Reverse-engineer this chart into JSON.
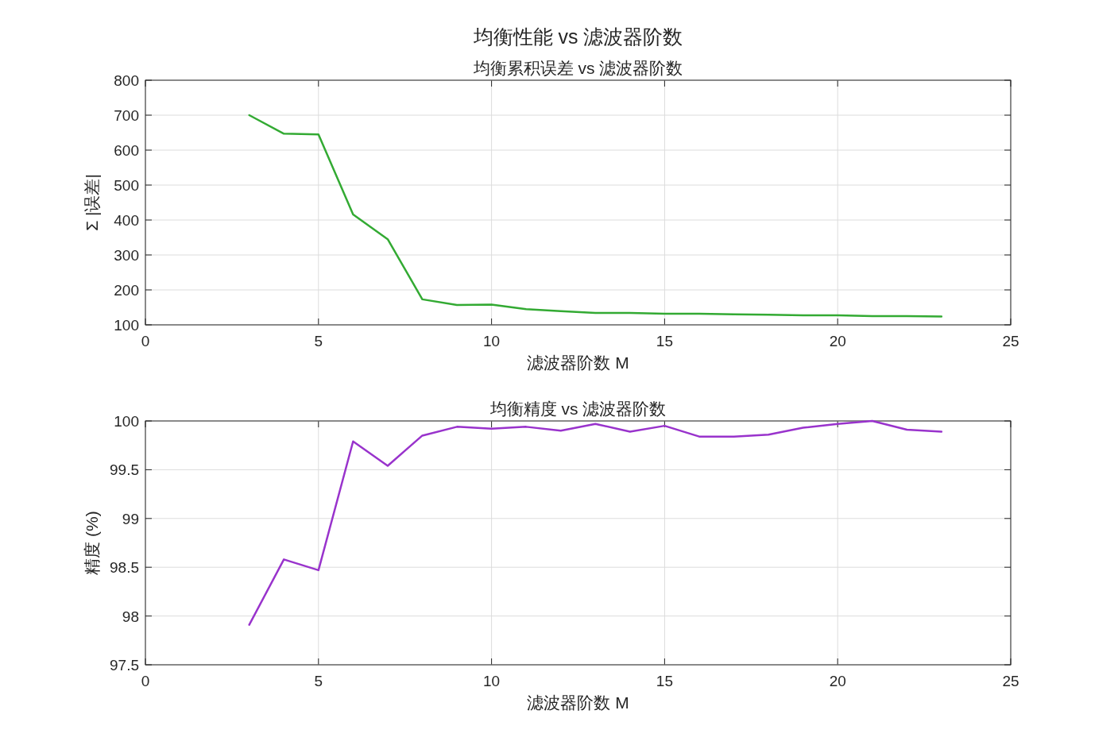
{
  "chart_data": [
    {
      "type": "line",
      "title": "均衡性能 vs 滤波器阶数",
      "subtitle": "均衡累积误差 vs 滤波器阶数",
      "xlabel": "滤波器阶数 M",
      "ylabel": "Σ |误差|",
      "x": [
        3,
        4,
        5,
        6,
        7,
        8,
        9,
        10,
        11,
        12,
        13,
        14,
        15,
        16,
        17,
        18,
        19,
        20,
        21,
        22,
        23
      ],
      "series": [
        {
          "color": "#33aa33",
          "values": [
            700,
            647,
            645,
            416,
            345,
            173,
            157,
            158,
            145,
            139,
            134,
            134,
            132,
            132,
            130,
            129,
            127,
            127,
            125,
            125,
            124
          ]
        }
      ],
      "xlim": [
        0,
        25
      ],
      "xticks": [
        0,
        5,
        10,
        15,
        20,
        25
      ],
      "ylim": [
        100,
        800
      ],
      "yticks": [
        100,
        200,
        300,
        400,
        500,
        600,
        700,
        800
      ],
      "grid": true
    },
    {
      "type": "line",
      "title": "均衡精度 vs 滤波器阶数",
      "xlabel": "滤波器阶数 M",
      "ylabel": "精度 (%)",
      "x": [
        3,
        4,
        5,
        6,
        7,
        8,
        9,
        10,
        11,
        12,
        13,
        14,
        15,
        16,
        17,
        18,
        19,
        20,
        21,
        22,
        23
      ],
      "series": [
        {
          "color": "#9933cc",
          "values": [
            97.91,
            98.58,
            98.47,
            99.79,
            99.54,
            99.85,
            99.94,
            99.92,
            99.94,
            99.9,
            99.97,
            99.89,
            99.95,
            99.84,
            99.84,
            99.86,
            99.93,
            99.97,
            100,
            99.91,
            99.89
          ]
        }
      ],
      "xlim": [
        0,
        25
      ],
      "xticks": [
        0,
        5,
        10,
        15,
        20,
        25
      ],
      "ylim": [
        97.5,
        100
      ],
      "yticks": [
        97.5,
        98,
        98.5,
        99,
        99.5,
        100
      ],
      "grid": true
    }
  ]
}
